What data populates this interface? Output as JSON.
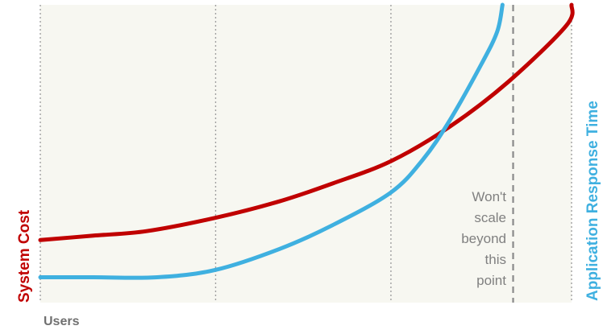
{
  "chart_data": {
    "type": "line",
    "xlabel": "Users",
    "ylabel_left": "System Cost",
    "ylabel_right": "Application Response Time",
    "annotation": [
      "Won't",
      "scale",
      "beyond",
      "this",
      "point"
    ],
    "grid": true,
    "xlim": [
      0,
      100
    ],
    "ylim": [
      0,
      100
    ],
    "gridlines_x": [
      0,
      33,
      66,
      100
    ],
    "threshold_x": 89,
    "series": [
      {
        "id": "system-cost",
        "color": "#c00000",
        "points": [
          [
            0,
            21
          ],
          [
            10,
            22.5
          ],
          [
            20,
            24
          ],
          [
            33,
            28.5
          ],
          [
            45,
            34
          ],
          [
            55,
            40
          ],
          [
            66,
            47.5
          ],
          [
            77,
            59
          ],
          [
            88,
            74
          ],
          [
            99,
            93
          ],
          [
            100,
            100
          ]
        ]
      },
      {
        "id": "response-time",
        "color": "#3fb0e0",
        "points": [
          [
            0,
            8.5
          ],
          [
            10,
            8.5
          ],
          [
            22,
            8.5
          ],
          [
            33,
            11
          ],
          [
            45,
            18
          ],
          [
            55,
            26
          ],
          [
            66,
            37
          ],
          [
            72,
            48
          ],
          [
            77,
            61
          ],
          [
            83,
            80
          ],
          [
            86,
            91
          ],
          [
            87,
            100
          ]
        ]
      }
    ],
    "colors": {
      "background": "#f7f7f1",
      "grid": "#a0a0a0",
      "axis_text": "#707070"
    }
  }
}
